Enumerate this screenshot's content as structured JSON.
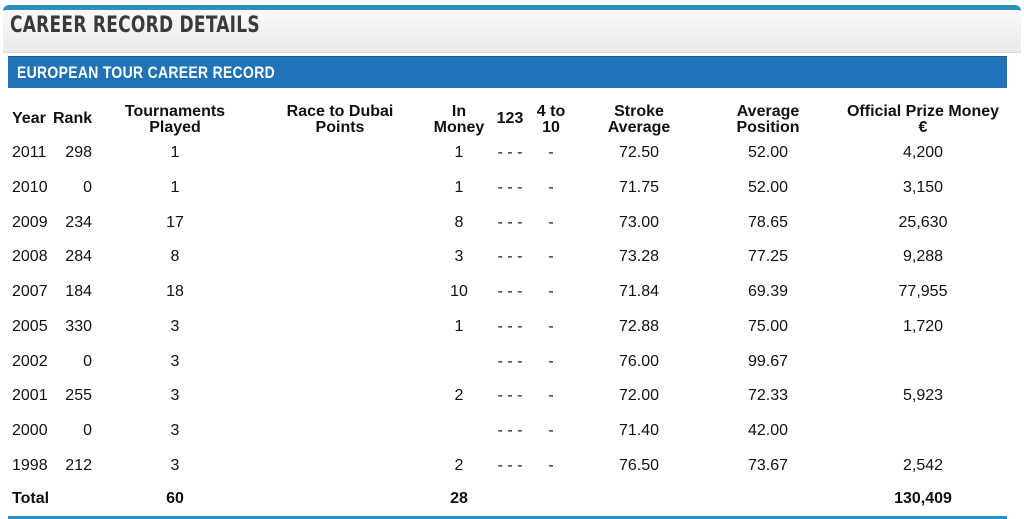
{
  "panel": {
    "title": "CAREER RECORD DETAILS"
  },
  "section": {
    "title": "EUROPEAN TOUR CAREER RECORD"
  },
  "headers": {
    "year": "Year",
    "rank": "Rank",
    "tournaments_1": "Tournaments",
    "tournaments_2": "Played",
    "race_1": "Race to Dubai",
    "race_2": "Points",
    "money_1": "In",
    "money_2": "Money",
    "c123": "123",
    "c410_1": "4 to",
    "c410_2": "10",
    "stroke_1": "Stroke",
    "stroke_2": "Average",
    "avgpos_1": "Average",
    "avgpos_2": "Position",
    "prize_1": "Official Prize Money",
    "prize_2": "€"
  },
  "rows": [
    {
      "year": "2011",
      "rank": "298",
      "played": "1",
      "race": "",
      "inmoney": "1",
      "c123": "- - -",
      "c410": "-",
      "stroke": "72.50",
      "avgpos": "52.00",
      "prize": "4,200"
    },
    {
      "year": "2010",
      "rank": "0",
      "played": "1",
      "race": "",
      "inmoney": "1",
      "c123": "- - -",
      "c410": "-",
      "stroke": "71.75",
      "avgpos": "52.00",
      "prize": "3,150"
    },
    {
      "year": "2009",
      "rank": "234",
      "played": "17",
      "race": "",
      "inmoney": "8",
      "c123": "- - -",
      "c410": "-",
      "stroke": "73.00",
      "avgpos": "78.65",
      "prize": "25,630"
    },
    {
      "year": "2008",
      "rank": "284",
      "played": "8",
      "race": "",
      "inmoney": "3",
      "c123": "- - -",
      "c410": "-",
      "stroke": "73.28",
      "avgpos": "77.25",
      "prize": "9,288"
    },
    {
      "year": "2007",
      "rank": "184",
      "played": "18",
      "race": "",
      "inmoney": "10",
      "c123": "- - -",
      "c410": "-",
      "stroke": "71.84",
      "avgpos": "69.39",
      "prize": "77,955"
    },
    {
      "year": "2005",
      "rank": "330",
      "played": "3",
      "race": "",
      "inmoney": "1",
      "c123": "- - -",
      "c410": "-",
      "stroke": "72.88",
      "avgpos": "75.00",
      "prize": "1,720"
    },
    {
      "year": "2002",
      "rank": "0",
      "played": "3",
      "race": "",
      "inmoney": "",
      "c123": "- - -",
      "c410": "-",
      "stroke": "76.00",
      "avgpos": "99.67",
      "prize": ""
    },
    {
      "year": "2001",
      "rank": "255",
      "played": "3",
      "race": "",
      "inmoney": "2",
      "c123": "- - -",
      "c410": "-",
      "stroke": "72.00",
      "avgpos": "72.33",
      "prize": "5,923"
    },
    {
      "year": "2000",
      "rank": "0",
      "played": "3",
      "race": "",
      "inmoney": "",
      "c123": "- - -",
      "c410": "-",
      "stroke": "71.40",
      "avgpos": "42.00",
      "prize": ""
    },
    {
      "year": "1998",
      "rank": "212",
      "played": "3",
      "race": "",
      "inmoney": "2",
      "c123": "- - -",
      "c410": "-",
      "stroke": "76.50",
      "avgpos": "73.67",
      "prize": "2,542"
    }
  ],
  "total": {
    "label": "Total",
    "played": "60",
    "inmoney": "28",
    "prize": "130,409"
  }
}
